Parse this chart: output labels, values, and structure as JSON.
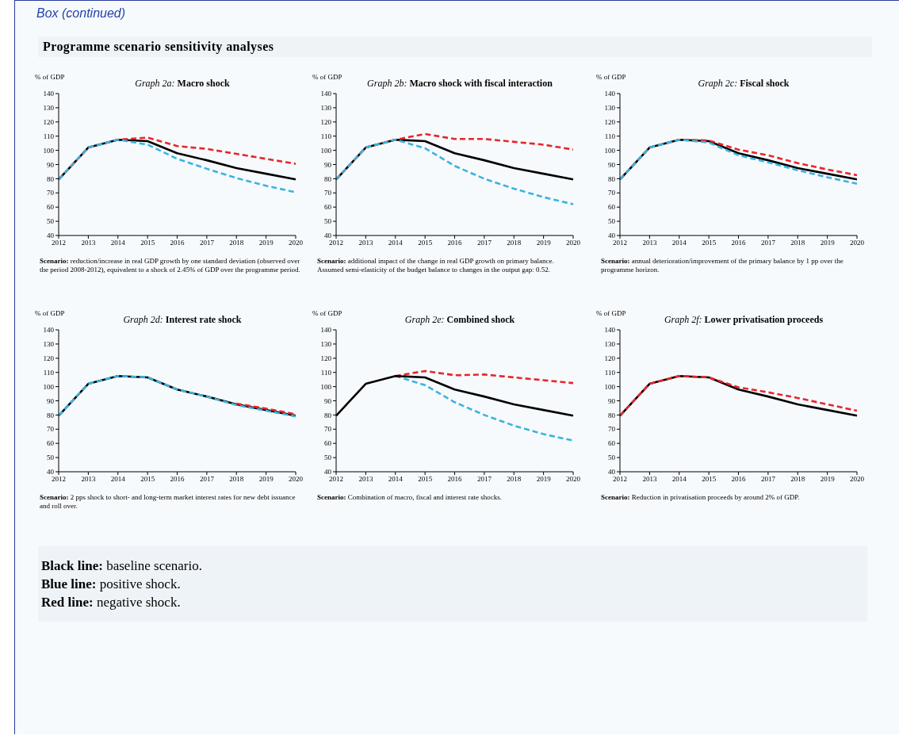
{
  "chart_data": [
    {
      "type": "other",
      "title": "Programme scenario sensitivity analyses",
      "annotations": [
        "Box (continued)"
      ]
    },
    {
      "type": "line",
      "title": "Graph 2a: Macro shock",
      "ylabel": "% of GDP",
      "categories": [
        "2012",
        "2013",
        "2014",
        "2015",
        "2016",
        "2017",
        "2018",
        "2019",
        "2020"
      ],
      "ylim": [
        40,
        140
      ],
      "yticks": [
        40,
        50,
        60,
        70,
        80,
        90,
        100,
        110,
        120,
        130,
        140
      ],
      "annotations": [
        "Scenario: reduction/increase in real GDP growth by one standard deviation (observed over the period 2008-2012), equivalent to a shock of 2.45% of GDP over the programme period."
      ],
      "series": [
        {
          "color": "#000000",
          "line_style": "solid",
          "values": [
            79.5,
            102,
            107.5,
            106.5,
            98,
            93,
            87.5,
            83.5,
            79.5
          ]
        },
        {
          "color": "#e8262b",
          "line_style": "dashed",
          "values": [
            79.5,
            102,
            107.5,
            109,
            103,
            101,
            97.5,
            94,
            90.5
          ]
        },
        {
          "color": "#3ab4e0",
          "line_style": "dashed",
          "values": [
            79.5,
            102,
            107.5,
            104,
            94,
            87,
            80.5,
            75,
            70.5
          ]
        }
      ]
    },
    {
      "type": "line",
      "title": "Graph 2b: Macro shock with fiscal interaction",
      "ylabel": "% of GDP",
      "categories": [
        "2012",
        "2013",
        "2014",
        "2015",
        "2016",
        "2017",
        "2018",
        "2019",
        "2020"
      ],
      "ylim": [
        40,
        140
      ],
      "yticks": [
        40,
        50,
        60,
        70,
        80,
        90,
        100,
        110,
        120,
        130,
        140
      ],
      "annotations": [
        "Scenario: additional impact of the change in real GDP growth on primary balance. Assumed semi-elasticity of the budget balance to changes in the output gap: 0.52."
      ],
      "series": [
        {
          "color": "#000000",
          "line_style": "solid",
          "values": [
            79.5,
            102,
            107.5,
            106.5,
            98,
            93,
            87.5,
            83.5,
            79.5
          ]
        },
        {
          "color": "#e8262b",
          "line_style": "dashed",
          "values": [
            79.5,
            102,
            107.5,
            111.5,
            108,
            108,
            106,
            104,
            100.5
          ]
        },
        {
          "color": "#3ab4e0",
          "line_style": "dashed",
          "values": [
            79.5,
            102,
            107.5,
            101.5,
            89,
            80,
            73,
            67,
            62
          ]
        }
      ]
    },
    {
      "type": "line",
      "title": "Graph 2c: Fiscal shock",
      "ylabel": "% of GDP",
      "categories": [
        "2012",
        "2013",
        "2014",
        "2015",
        "2016",
        "2017",
        "2018",
        "2019",
        "2020"
      ],
      "ylim": [
        40,
        140
      ],
      "yticks": [
        40,
        50,
        60,
        70,
        80,
        90,
        100,
        110,
        120,
        130,
        140
      ],
      "annotations": [
        "Scenario: annual deterioration/improvement of the primary balance by 1 pp over the programme horizon."
      ],
      "series": [
        {
          "color": "#000000",
          "line_style": "solid",
          "values": [
            79.5,
            102,
            107.5,
            106.5,
            98,
            93,
            87.5,
            83.5,
            79.5
          ]
        },
        {
          "color": "#e8262b",
          "line_style": "dashed",
          "values": [
            79.5,
            102,
            107.5,
            107,
            100.5,
            96.5,
            91,
            86.5,
            82.5
          ]
        },
        {
          "color": "#3ab4e0",
          "line_style": "dashed",
          "values": [
            79.5,
            102,
            107.5,
            105.5,
            96.5,
            91.5,
            86,
            81,
            76.5
          ]
        }
      ]
    },
    {
      "type": "line",
      "title": "Graph 2d: Interest rate shock",
      "ylabel": "% of GDP",
      "categories": [
        "2012",
        "2013",
        "2014",
        "2015",
        "2016",
        "2017",
        "2018",
        "2019",
        "2020"
      ],
      "ylim": [
        40,
        140
      ],
      "yticks": [
        40,
        50,
        60,
        70,
        80,
        90,
        100,
        110,
        120,
        130,
        140
      ],
      "annotations": [
        "Scenario: 2 pps shock to short- and long-term market interest rates for new debt issuance and roll over."
      ],
      "series": [
        {
          "color": "#000000",
          "line_style": "solid",
          "values": [
            79.5,
            102,
            107.5,
            106.5,
            98,
            93,
            87.5,
            83.5,
            79.5
          ]
        },
        {
          "color": "#3ab4e0",
          "line_style": "dashed",
          "values": [
            79.5,
            102,
            107.5,
            106.5,
            98,
            93,
            87,
            83,
            79
          ]
        },
        {
          "color": "#e8262b",
          "line_style": "dashed",
          "values": [
            null,
            null,
            null,
            null,
            null,
            null,
            88,
            84.5,
            80.5
          ]
        }
      ]
    },
    {
      "type": "line",
      "title": "Graph 2e: Combined shock",
      "ylabel": "% of GDP",
      "categories": [
        "2012",
        "2013",
        "2014",
        "2015",
        "2016",
        "2017",
        "2018",
        "2019",
        "2020"
      ],
      "ylim": [
        40,
        140
      ],
      "yticks": [
        40,
        50,
        60,
        70,
        80,
        90,
        100,
        110,
        120,
        130,
        140
      ],
      "annotations": [
        "Scenario: Combination of macro, fiscal and interest rate shocks."
      ],
      "series": [
        {
          "color": "#e8262b",
          "line_style": "dashed",
          "values": [
            null,
            null,
            107.5,
            111,
            108,
            108.5,
            106.5,
            104.5,
            102.5
          ]
        },
        {
          "color": "#3ab4e0",
          "line_style": "dashed",
          "values": [
            null,
            null,
            107.5,
            101,
            89,
            80,
            72.5,
            66.5,
            62
          ]
        },
        {
          "color": "#000000",
          "line_style": "solid",
          "values": [
            79.5,
            102,
            107.5,
            106.5,
            98,
            93,
            87.5,
            83.5,
            79.5
          ]
        }
      ]
    },
    {
      "type": "line",
      "title": "Graph 2f: Lower privatisation proceeds",
      "ylabel": "% of GDP",
      "categories": [
        "2012",
        "2013",
        "2014",
        "2015",
        "2016",
        "2017",
        "2018",
        "2019",
        "2020"
      ],
      "ylim": [
        40,
        140
      ],
      "yticks": [
        40,
        50,
        60,
        70,
        80,
        90,
        100,
        110,
        120,
        130,
        140
      ],
      "annotations": [
        "Scenario: Reduction in privatisation proceeds by around 2% of GDP."
      ],
      "series": [
        {
          "color": "#000000",
          "line_style": "solid",
          "values": [
            79.5,
            102,
            107.5,
            106.5,
            98,
            93,
            87.5,
            83.5,
            79.5
          ]
        },
        {
          "color": "#e8262b",
          "line_style": "dashed",
          "values": [
            79.5,
            102,
            107.5,
            106.5,
            99.5,
            96,
            92,
            87.5,
            83
          ]
        }
      ]
    },
    {
      "type": "other",
      "annotations": [
        "Black line: baseline scenario.",
        "Blue line: positive shock.",
        "Red line: negative shock."
      ]
    }
  ]
}
